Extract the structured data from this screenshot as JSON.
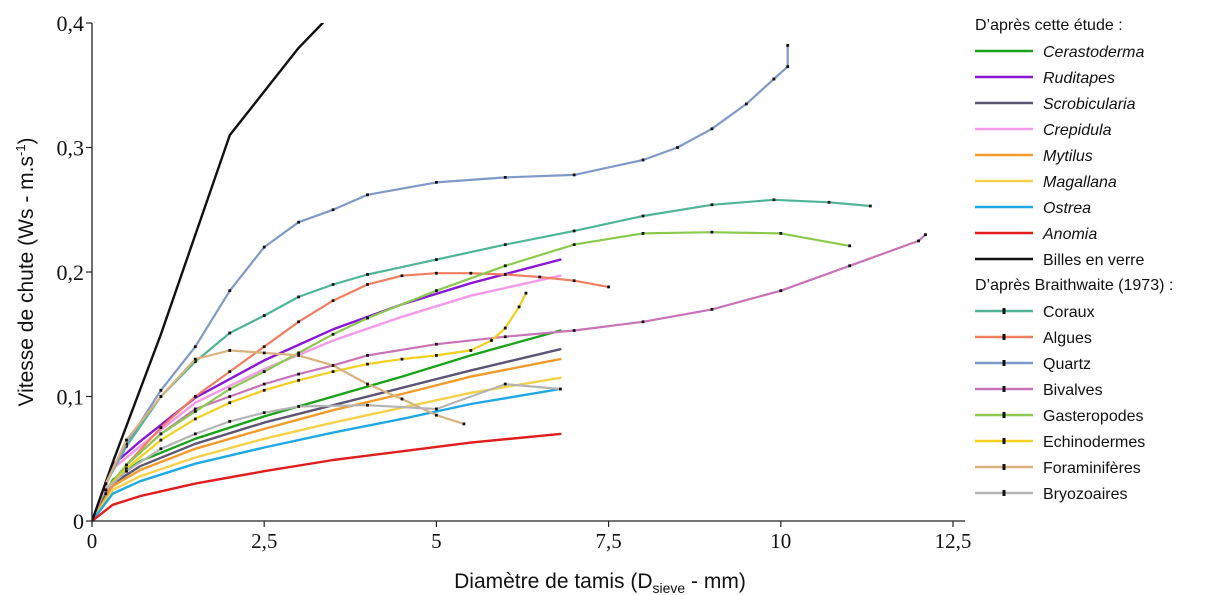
{
  "chart_data": {
    "type": "line",
    "xlabel": {
      "main": "Diamètre de tamis (D",
      "sub": "sieve",
      "rest": " - mm)"
    },
    "ylabel": {
      "main": "Vitesse de chute (Ws - m.s",
      "sup": "-1",
      "rest": ")"
    },
    "xlim": [
      0,
      12.5
    ],
    "ylim": [
      0,
      0.4
    ],
    "xticks": [
      {
        "value": 0,
        "label": "0"
      },
      {
        "value": 2.5,
        "label": "2,5"
      },
      {
        "value": 5,
        "label": "5"
      },
      {
        "value": 7.5,
        "label": "7,5"
      },
      {
        "value": 10,
        "label": "10"
      },
      {
        "value": 12.5,
        "label": "12,5"
      }
    ],
    "yticks": [
      {
        "value": 0,
        "label": "0"
      },
      {
        "value": 0.1,
        "label": "0,1"
      },
      {
        "value": 0.2,
        "label": "0,2"
      },
      {
        "value": 0.3,
        "label": "0,3"
      },
      {
        "value": 0.4,
        "label": "0,4"
      }
    ],
    "grid": false,
    "legend_position": "right",
    "legend_groups": [
      {
        "title": "D’après cette étude :",
        "series_style": "solid"
      },
      {
        "title": "D’après Braithwaite (1973) :",
        "series_style": "dotted-markers"
      }
    ],
    "series": [
      {
        "name": "Cerastoderma",
        "group": 0,
        "italic": true,
        "color": "#1aa31a",
        "x": [
          0,
          0.3,
          0.7,
          1.5,
          2.5,
          3.5,
          4.5,
          5.5,
          6.8
        ],
        "y": [
          0,
          0.033,
          0.048,
          0.066,
          0.084,
          0.1,
          0.116,
          0.133,
          0.153
        ]
      },
      {
        "name": "Ruditapes",
        "group": 0,
        "italic": true,
        "color": "#8a16d6",
        "x": [
          0,
          0.3,
          0.7,
          1.5,
          2.5,
          3.5,
          4.5,
          5.5,
          6.8
        ],
        "y": [
          0,
          0.045,
          0.064,
          0.099,
          0.129,
          0.154,
          0.174,
          0.191,
          0.21
        ]
      },
      {
        "name": "Scrobicularia",
        "group": 0,
        "italic": true,
        "color": "#5c5575",
        "x": [
          0,
          0.3,
          0.7,
          1.5,
          2.5,
          3.5,
          4.5,
          5.5,
          6.8
        ],
        "y": [
          0,
          0.03,
          0.044,
          0.062,
          0.079,
          0.093,
          0.107,
          0.121,
          0.138
        ]
      },
      {
        "name": "Crepidula",
        "group": 0,
        "italic": true,
        "color": "#f59ae8",
        "x": [
          0,
          0.3,
          0.7,
          1.5,
          2.5,
          3.5,
          4.5,
          5.5,
          6.8
        ],
        "y": [
          0,
          0.042,
          0.06,
          0.095,
          0.122,
          0.145,
          0.164,
          0.181,
          0.197
        ]
      },
      {
        "name": "Mytilus",
        "group": 0,
        "italic": true,
        "color": "#f29b2b",
        "x": [
          0,
          0.3,
          0.7,
          1.5,
          2.5,
          3.5,
          4.5,
          5.5,
          6.8
        ],
        "y": [
          0,
          0.028,
          0.041,
          0.058,
          0.074,
          0.089,
          0.102,
          0.116,
          0.13
        ]
      },
      {
        "name": "Magallana",
        "group": 0,
        "italic": true,
        "color": "#f5d24a",
        "x": [
          0,
          0.3,
          0.7,
          1.5,
          2.5,
          3.5,
          4.5,
          5.5,
          6.8
        ],
        "y": [
          0,
          0.025,
          0.036,
          0.051,
          0.066,
          0.079,
          0.091,
          0.103,
          0.115
        ]
      },
      {
        "name": "Ostrea",
        "group": 0,
        "italic": true,
        "color": "#1ea9e6",
        "x": [
          0,
          0.3,
          0.7,
          1.5,
          2.5,
          3.5,
          4.5,
          5.5,
          6.8
        ],
        "y": [
          0,
          0.022,
          0.032,
          0.046,
          0.059,
          0.071,
          0.082,
          0.094,
          0.106
        ]
      },
      {
        "name": "Anomia",
        "group": 0,
        "italic": true,
        "color": "#e11d1d",
        "x": [
          0,
          0.3,
          0.7,
          1.5,
          2.5,
          3.5,
          4.5,
          5.5,
          6.8
        ],
        "y": [
          0,
          0.013,
          0.02,
          0.03,
          0.04,
          0.049,
          0.056,
          0.063,
          0.07
        ]
      },
      {
        "name": "Billes en verre",
        "group": 0,
        "italic": false,
        "color": "#111111",
        "x": [
          0,
          0.3,
          1,
          2,
          2.5,
          3,
          3.35
        ],
        "y": [
          0,
          0.047,
          0.15,
          0.31,
          0.345,
          0.38,
          0.4
        ]
      },
      {
        "name": "Coraux",
        "group": 1,
        "italic": false,
        "color": "#4fb596",
        "x": [
          0.2,
          0.5,
          1,
          1.5,
          2,
          2.5,
          3,
          3.5,
          4,
          5,
          6,
          7,
          8,
          9,
          9.9,
          10.7,
          11.3
        ],
        "y": [
          0.03,
          0.06,
          0.1,
          0.128,
          0.151,
          0.165,
          0.18,
          0.19,
          0.198,
          0.21,
          0.222,
          0.233,
          0.245,
          0.254,
          0.258,
          0.256,
          0.253
        ]
      },
      {
        "name": "Algues",
        "group": 1,
        "italic": false,
        "color": "#ef7f60",
        "x": [
          0.2,
          0.5,
          1,
          1.5,
          2,
          2.5,
          3,
          3.5,
          4,
          4.5,
          5,
          5.5,
          6,
          6.5,
          7,
          7.5
        ],
        "y": [
          0.022,
          0.045,
          0.075,
          0.1,
          0.12,
          0.14,
          0.16,
          0.177,
          0.19,
          0.197,
          0.199,
          0.199,
          0.198,
          0.196,
          0.193,
          0.188
        ]
      },
      {
        "name": "Quartz",
        "group": 1,
        "italic": false,
        "color": "#7f99c8",
        "x": [
          0.2,
          0.5,
          1,
          1.5,
          2,
          2.5,
          3,
          3.5,
          4,
          5,
          6,
          7,
          8,
          8.5,
          9,
          9.5,
          9.9,
          10.1,
          10.1
        ],
        "y": [
          0.03,
          0.062,
          0.105,
          0.14,
          0.185,
          0.22,
          0.24,
          0.25,
          0.262,
          0.272,
          0.276,
          0.278,
          0.29,
          0.3,
          0.315,
          0.335,
          0.355,
          0.365,
          0.382
        ]
      },
      {
        "name": "Bivalves",
        "group": 1,
        "italic": false,
        "color": "#c973b7",
        "x": [
          0.2,
          0.5,
          1,
          1.5,
          2,
          2.5,
          3,
          3.5,
          4,
          5,
          6,
          7,
          8,
          9,
          10,
          11,
          12,
          12.1
        ],
        "y": [
          0.025,
          0.045,
          0.07,
          0.09,
          0.1,
          0.11,
          0.118,
          0.125,
          0.133,
          0.142,
          0.148,
          0.153,
          0.16,
          0.17,
          0.185,
          0.205,
          0.225,
          0.23
        ]
      },
      {
        "name": "Gasteropodes",
        "group": 1,
        "italic": false,
        "color": "#8cca4f",
        "x": [
          0.2,
          0.5,
          1,
          1.5,
          2,
          2.5,
          3,
          3.5,
          4,
          5,
          6,
          7,
          8,
          9,
          10,
          11
        ],
        "y": [
          0.025,
          0.045,
          0.07,
          0.088,
          0.106,
          0.12,
          0.135,
          0.15,
          0.163,
          0.185,
          0.205,
          0.222,
          0.231,
          0.232,
          0.231,
          0.221
        ]
      },
      {
        "name": "Echinodermes",
        "group": 1,
        "italic": false,
        "color": "#f2d01e",
        "x": [
          0.2,
          0.5,
          1,
          1.5,
          2,
          2.5,
          3,
          3.5,
          4,
          4.5,
          5,
          5.5,
          5.8,
          6,
          6.2,
          6.3
        ],
        "y": [
          0.025,
          0.042,
          0.065,
          0.082,
          0.095,
          0.105,
          0.113,
          0.12,
          0.126,
          0.13,
          0.133,
          0.137,
          0.145,
          0.155,
          0.172,
          0.183
        ]
      },
      {
        "name": "Foraminifères",
        "group": 1,
        "italic": false,
        "color": "#d9b27e",
        "x": [
          0.2,
          0.5,
          1,
          1.5,
          2,
          2.5,
          3,
          3.5,
          4,
          4.5,
          5,
          5.4
        ],
        "y": [
          0.03,
          0.065,
          0.1,
          0.13,
          0.137,
          0.135,
          0.133,
          0.125,
          0.11,
          0.098,
          0.085,
          0.078
        ]
      },
      {
        "name": "Bryozoaires",
        "group": 1,
        "italic": false,
        "color": "#b4b4b4",
        "x": [
          0.2,
          0.5,
          1,
          1.5,
          2,
          2.5,
          3,
          4,
          5,
          6,
          6.8
        ],
        "y": [
          0.025,
          0.04,
          0.058,
          0.07,
          0.08,
          0.087,
          0.092,
          0.093,
          0.09,
          0.11,
          0.106
        ]
      }
    ]
  }
}
